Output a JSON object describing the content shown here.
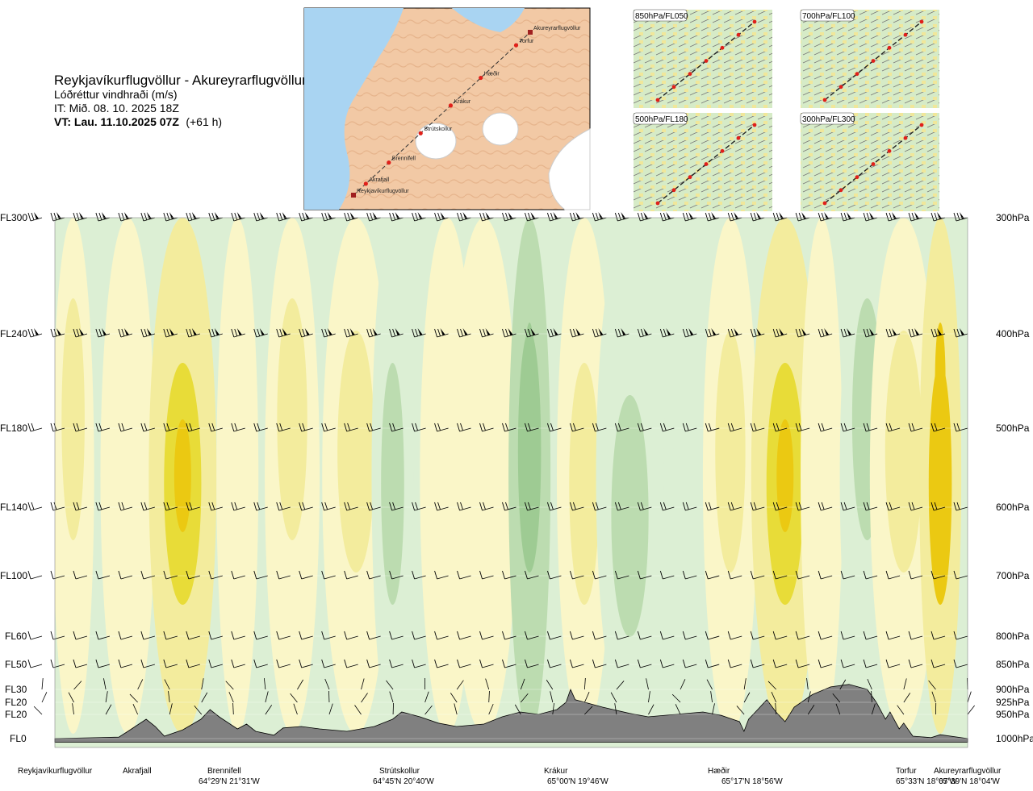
{
  "header": {
    "title": "Reykjavíkurflugvöllur - Akureyrarflugvöllur",
    "subtitle": "Lóðréttur vindhraði (m/s)",
    "init_time": "IT: Mið. 08. 10. 2025 18Z",
    "valid_time": "VT: Lau. 11.10.2025 07Z",
    "lead_time": "(+61 h)"
  },
  "map": {
    "waypoints": [
      "Akureyrarflugvöllur",
      "Torfur",
      "Hæðir",
      "Krákur",
      "Strútskollur",
      "Brennifell",
      "Akrafjall",
      "Reykjavíkurflugvöllur"
    ]
  },
  "panels": [
    {
      "label": "850hPa/FL050"
    },
    {
      "label": "700hPa/FL100"
    },
    {
      "label": "500hPa/FL180"
    },
    {
      "label": "300hPa/FL300"
    }
  ],
  "chart_data": {
    "type": "heatmap",
    "title": "Lóðréttur vindhraði (m/s)",
    "route": "Reykjavíkurflugvöllur - Akureyrarflugvöllur",
    "levels_left": [
      {
        "label": "FL300",
        "hpa": 300
      },
      {
        "label": "FL240",
        "hpa": 400
      },
      {
        "label": "FL180",
        "hpa": 500
      },
      {
        "label": "FL140",
        "hpa": 600
      },
      {
        "label": "FL100",
        "hpa": 700
      },
      {
        "label": "FL60",
        "hpa": 800
      },
      {
        "label": "FL50",
        "hpa": 850
      },
      {
        "label": "FL30",
        "hpa": 900
      },
      {
        "label": "FL20",
        "hpa": 925
      },
      {
        "label": "FL20",
        "hpa": 950
      },
      {
        "label": "FL0",
        "hpa": 1000
      }
    ],
    "levels_right": [
      "300hPa",
      "400hPa",
      "500hPa",
      "600hPa",
      "700hPa",
      "800hPa",
      "850hPa",
      "900hPa",
      "925hPa",
      "950hPa",
      "1000hPa"
    ],
    "waypoints": [
      {
        "name": "Reykjavíkurflugvöllur",
        "dist": 0.0,
        "coord": ""
      },
      {
        "name": "Akrafjall",
        "dist": 0.09,
        "coord": ""
      },
      {
        "name": "Brennifell",
        "dist": 0.185,
        "coord": "64°29'N 21°31'W"
      },
      {
        "name": "Strútskollur",
        "dist": 0.378,
        "coord": "64°45'N 20°40'W"
      },
      {
        "name": "Krákur",
        "dist": 0.555,
        "coord": "65°00'N 19°46'W"
      },
      {
        "name": "Hæðir",
        "dist": 0.756,
        "coord": "65°17'N 18°56'W"
      },
      {
        "name": "Torfur",
        "dist": 0.924,
        "coord": "65°33'N 18°07'W"
      },
      {
        "name": "Akureyrarflugvöllur",
        "dist": 0.98,
        "coord": "65°39'N 18°04'W"
      }
    ],
    "terrain_hpa": [
      [
        0.0,
        1000
      ],
      [
        0.07,
        997
      ],
      [
        0.08,
        985
      ],
      [
        0.1,
        960
      ],
      [
        0.11,
        975
      ],
      [
        0.12,
        995
      ],
      [
        0.14,
        982
      ],
      [
        0.16,
        960
      ],
      [
        0.17,
        940
      ],
      [
        0.18,
        955
      ],
      [
        0.2,
        980
      ],
      [
        0.21,
        970
      ],
      [
        0.22,
        985
      ],
      [
        0.24,
        993
      ],
      [
        0.25,
        978
      ],
      [
        0.27,
        975
      ],
      [
        0.29,
        980
      ],
      [
        0.32,
        985
      ],
      [
        0.35,
        975
      ],
      [
        0.37,
        960
      ],
      [
        0.38,
        945
      ],
      [
        0.4,
        955
      ],
      [
        0.42,
        968
      ],
      [
        0.44,
        975
      ],
      [
        0.47,
        970
      ],
      [
        0.49,
        955
      ],
      [
        0.51,
        945
      ],
      [
        0.53,
        950
      ],
      [
        0.55,
        940
      ],
      [
        0.56,
        925
      ],
      [
        0.565,
        900
      ],
      [
        0.57,
        920
      ],
      [
        0.6,
        935
      ],
      [
        0.63,
        948
      ],
      [
        0.65,
        955
      ],
      [
        0.68,
        950
      ],
      [
        0.71,
        945
      ],
      [
        0.73,
        952
      ],
      [
        0.75,
        965
      ],
      [
        0.755,
        985
      ],
      [
        0.76,
        960
      ],
      [
        0.77,
        940
      ],
      [
        0.78,
        920
      ],
      [
        0.79,
        945
      ],
      [
        0.8,
        965
      ],
      [
        0.81,
        935
      ],
      [
        0.83,
        910
      ],
      [
        0.85,
        895
      ],
      [
        0.87,
        890
      ],
      [
        0.89,
        900
      ],
      [
        0.9,
        925
      ],
      [
        0.91,
        960
      ],
      [
        0.915,
        945
      ],
      [
        0.925,
        980
      ],
      [
        0.93,
        968
      ],
      [
        0.94,
        995
      ],
      [
        0.96,
        998
      ],
      [
        0.97,
        992
      ],
      [
        1.0,
        1000
      ]
    ],
    "columns": [
      {
        "dist": 0.02,
        "value": 0.4
      },
      {
        "dist": 0.08,
        "value": 0.2
      },
      {
        "dist": 0.14,
        "value": 0.8
      },
      {
        "dist": 0.2,
        "value": 0.3
      },
      {
        "dist": 0.26,
        "value": 0.5
      },
      {
        "dist": 0.33,
        "value": 0.6
      },
      {
        "dist": 0.37,
        "value": -0.4
      },
      {
        "dist": 0.43,
        "value": 0.2
      },
      {
        "dist": 0.47,
        "value": 0.3
      },
      {
        "dist": 0.52,
        "value": -0.9
      },
      {
        "dist": 0.58,
        "value": 0.6
      },
      {
        "dist": 0.63,
        "value": -0.4
      },
      {
        "dist": 0.69,
        "value": -0.2
      },
      {
        "dist": 0.74,
        "value": 0.5
      },
      {
        "dist": 0.8,
        "value": 0.9
      },
      {
        "dist": 0.84,
        "value": 0.2
      },
      {
        "dist": 0.89,
        "value": -0.4
      },
      {
        "dist": 0.93,
        "value": 0.6
      },
      {
        "dist": 0.97,
        "value": 1.1
      }
    ]
  }
}
